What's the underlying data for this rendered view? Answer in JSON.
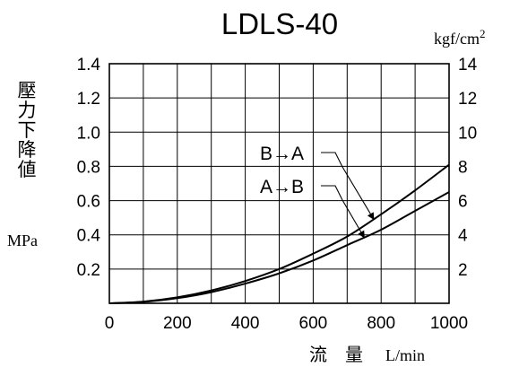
{
  "chart_data": {
    "type": "line",
    "title": "LDLS-40",
    "xlabel": "流　量　L/min",
    "xlabel_cjk": "流　量",
    "xlabel_unit": "L/min",
    "ylabel": "壓力下降値",
    "ylabel_chars": [
      "壓",
      "力",
      "下",
      "降",
      "値"
    ],
    "ylabel_unit": "MPa",
    "y2label_unit": "kgf/cm",
    "y2label_unit_sup": "2",
    "xlim": [
      0,
      1000
    ],
    "ylim": [
      0,
      1.4
    ],
    "y2lim": [
      0,
      14
    ],
    "x_ticks": [
      "0",
      "200",
      "400",
      "600",
      "800",
      "1000"
    ],
    "y_ticks": [
      "0.2",
      "0.4",
      "0.6",
      "0.8",
      "1.0",
      "1.2",
      "1.4"
    ],
    "y2_ticks": [
      "2",
      "4",
      "6",
      "8",
      "10",
      "12",
      "14"
    ],
    "grid": true,
    "series": [
      {
        "name": "B→A",
        "x": [
          0,
          100,
          200,
          300,
          400,
          500,
          600,
          700,
          800,
          900,
          1000
        ],
        "y": [
          0,
          0.01,
          0.035,
          0.075,
          0.13,
          0.2,
          0.29,
          0.39,
          0.52,
          0.66,
          0.81
        ]
      },
      {
        "name": "A→B",
        "x": [
          0,
          100,
          200,
          300,
          400,
          500,
          600,
          700,
          800,
          900,
          1000
        ],
        "y": [
          0,
          0.008,
          0.03,
          0.065,
          0.115,
          0.175,
          0.25,
          0.34,
          0.43,
          0.54,
          0.65
        ]
      }
    ]
  }
}
